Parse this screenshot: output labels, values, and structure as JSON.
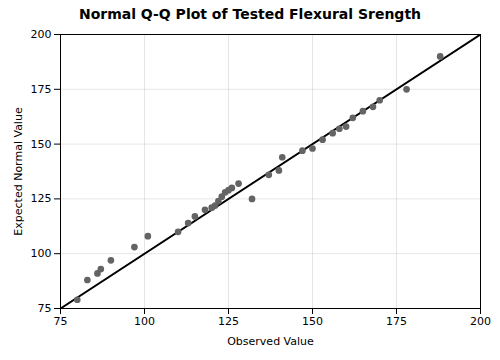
{
  "chart_data": {
    "type": "scatter",
    "title": "Normal Q-Q Plot of Tested Flexural Srength",
    "xlabel": "Observed Value",
    "ylabel": "Expected Normal Value",
    "xlim": [
      75,
      200
    ],
    "ylim": [
      75,
      200
    ],
    "xticks": [
      75,
      100,
      125,
      150,
      175,
      200
    ],
    "yticks": [
      75,
      100,
      125,
      150,
      175,
      200
    ],
    "grid": true,
    "x": [
      80,
      83,
      86,
      87,
      90,
      97,
      101,
      110,
      113,
      115,
      118,
      120,
      121,
      122,
      123,
      124,
      125,
      126,
      128,
      132,
      137,
      140,
      141,
      147,
      150,
      153,
      156,
      158,
      160,
      162,
      165,
      168,
      170,
      178,
      188
    ],
    "values": [
      79,
      88,
      91,
      93,
      97,
      103,
      108,
      110,
      114,
      117,
      120,
      121,
      122,
      124,
      126,
      128,
      129,
      130,
      132,
      125,
      136,
      138,
      144,
      147,
      148,
      152,
      155,
      157,
      158,
      162,
      165,
      167,
      170,
      175,
      190
    ],
    "color": "#646464",
    "reference_line": {
      "x": [
        75,
        200
      ],
      "y": [
        75,
        200
      ],
      "color": "#000000"
    }
  }
}
